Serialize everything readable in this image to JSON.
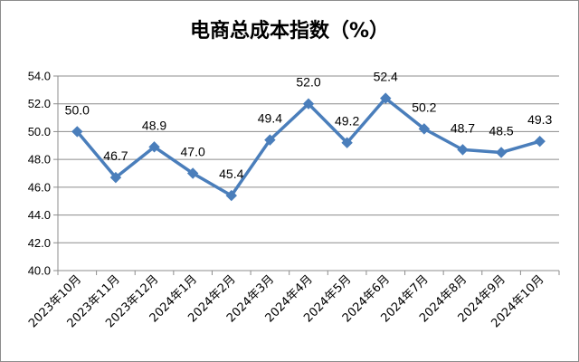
{
  "chart_data": {
    "type": "line",
    "title": "电商总成本指数（%）",
    "xlabel": "",
    "ylabel": "",
    "ylim": [
      40.0,
      54.0
    ],
    "ytick_step": 2.0,
    "yticks": [
      "40.0",
      "42.0",
      "44.0",
      "46.0",
      "48.0",
      "50.0",
      "52.0",
      "54.0"
    ],
    "grid": true,
    "legend": "none",
    "categories": [
      "2023年10月",
      "2023年11月",
      "2023年12月",
      "2024年1月",
      "2024年2月",
      "2024年3月",
      "2024年4月",
      "2024年5月",
      "2024年6月",
      "2024年7月",
      "2024年8月",
      "2024年9月",
      "2024年10月"
    ],
    "series": [
      {
        "values": [
          50.0,
          46.7,
          48.9,
          47.0,
          45.4,
          49.4,
          52.0,
          49.2,
          52.4,
          50.2,
          48.7,
          48.5,
          49.3
        ],
        "labels": [
          "50.0",
          "46.7",
          "48.9",
          "47.0",
          "45.4",
          "49.4",
          "52.0",
          "49.2",
          "52.4",
          "50.2",
          "48.7",
          "48.5",
          "49.3"
        ],
        "color": "#4a7ebb",
        "marker": "diamond"
      }
    ]
  }
}
